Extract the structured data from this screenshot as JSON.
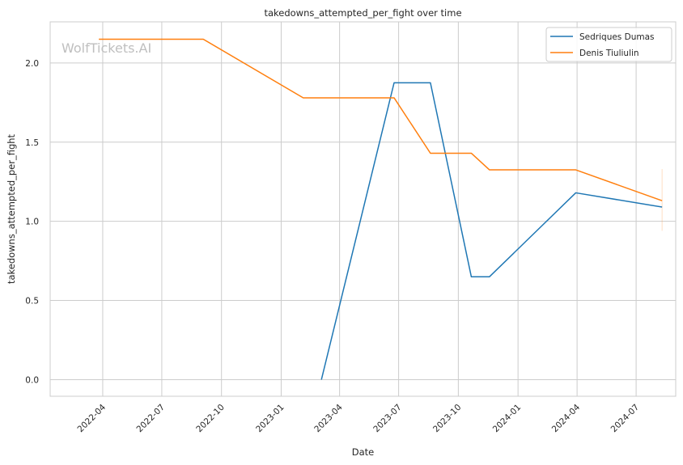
{
  "chart_data": {
    "type": "line",
    "title": "takedowns_attempted_per_fight over time",
    "xlabel": "Date",
    "ylabel": "takedowns_attempted_per_fight",
    "watermark": "WolfTickets.AI",
    "x_range": [
      "2022-01-10",
      "2024-08-31"
    ],
    "ylim": [
      -0.105,
      2.26
    ],
    "x_ticks": [
      "2022-04",
      "2022-07",
      "2022-10",
      "2023-01",
      "2023-04",
      "2023-07",
      "2023-10",
      "2024-01",
      "2024-04",
      "2024-07"
    ],
    "y_ticks": [
      0.0,
      0.5,
      1.0,
      1.5,
      2.0
    ],
    "y_tick_labels": [
      "0.0",
      "0.5",
      "1.0",
      "1.5",
      "2.0"
    ],
    "grid": true,
    "legend_position": "top-right",
    "series": [
      {
        "name": "Sedriques Dumas",
        "color": "#1f77b4",
        "points": [
          {
            "x": "2023-03-04",
            "y": 0.0
          },
          {
            "x": "2023-06-24",
            "y": 1.875
          },
          {
            "x": "2023-08-19",
            "y": 1.875
          },
          {
            "x": "2023-10-21",
            "y": 0.65
          },
          {
            "x": "2023-11-18",
            "y": 0.65
          },
          {
            "x": "2024-03-30",
            "y": 1.18
          },
          {
            "x": "2024-08-10",
            "y": 1.09
          }
        ]
      },
      {
        "name": "Denis Tiuliulin",
        "color": "#ff7f0e",
        "points": [
          {
            "x": "2022-03-26",
            "y": 2.15
          },
          {
            "x": "2022-09-03",
            "y": 2.15
          },
          {
            "x": "2023-02-04",
            "y": 1.78
          },
          {
            "x": "2023-06-24",
            "y": 1.78
          },
          {
            "x": "2023-08-19",
            "y": 1.43
          },
          {
            "x": "2023-10-21",
            "y": 1.43
          },
          {
            "x": "2023-11-18",
            "y": 1.325
          },
          {
            "x": "2024-03-30",
            "y": 1.325
          },
          {
            "x": "2024-08-10",
            "y": 1.13
          }
        ],
        "error_bar": {
          "x": "2024-08-10",
          "low": 0.94,
          "high": 1.33
        }
      }
    ]
  }
}
